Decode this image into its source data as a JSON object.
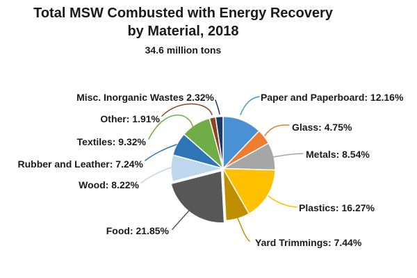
{
  "title": {
    "line1": "Total MSW Combusted with Energy Recovery",
    "line2": "by Material, 2018"
  },
  "subtitle": "34.6 million tons",
  "colors": {
    "background": "#ffffff",
    "text": "#1a1a1a",
    "slice_border": "#ffffff"
  },
  "chart_data": {
    "type": "pie",
    "title": "Total MSW Combusted with Energy Recovery by Material, 2018",
    "subtitle": "34.6 million tons",
    "unit": "percent",
    "direction": "clockwise",
    "start_angle_deg": 0,
    "legend": "none (direct labels with leader lines)",
    "slices": [
      {
        "label": "Paper and Paperboard",
        "value": 12.16,
        "display": "Paper and Paperboard: 12.16%",
        "color": "#4A90D5"
      },
      {
        "label": "Glass",
        "value": 4.75,
        "display": "Glass: 4.75%",
        "color": "#ED7D31"
      },
      {
        "label": "Metals",
        "value": 8.54,
        "display": "Metals: 8.54%",
        "color": "#A6A6A6"
      },
      {
        "label": "Plastics",
        "value": 16.27,
        "display": "Plastics: 16.27%",
        "color": "#FFC000"
      },
      {
        "label": "Yard Trimmings",
        "value": 7.44,
        "display": "Yard Trimmings: 7.44%",
        "color": "#BF8F00"
      },
      {
        "label": "Food",
        "value": 21.85,
        "display": "Food: 21.85%",
        "color": "#575757",
        "exploded": true
      },
      {
        "label": "Wood",
        "value": 8.22,
        "display": "Wood: 8.22%",
        "color": "#BDD7EE"
      },
      {
        "label": "Rubber and Leather",
        "value": 7.24,
        "display": "Rubber and Leather: 7.24%",
        "color": "#2E75B6"
      },
      {
        "label": "Textiles",
        "value": 9.32,
        "display": "Textiles: 9.32%",
        "color": "#70AD47"
      },
      {
        "label": "Other",
        "value": 1.91,
        "display": "Other: 1.91%",
        "color": "#8C4720"
      },
      {
        "label": "Misc. Inorganic Wastes",
        "value": 2.32,
        "display": "Misc. Inorganic Wastes 2.32%",
        "color": "#1F3864"
      }
    ]
  }
}
